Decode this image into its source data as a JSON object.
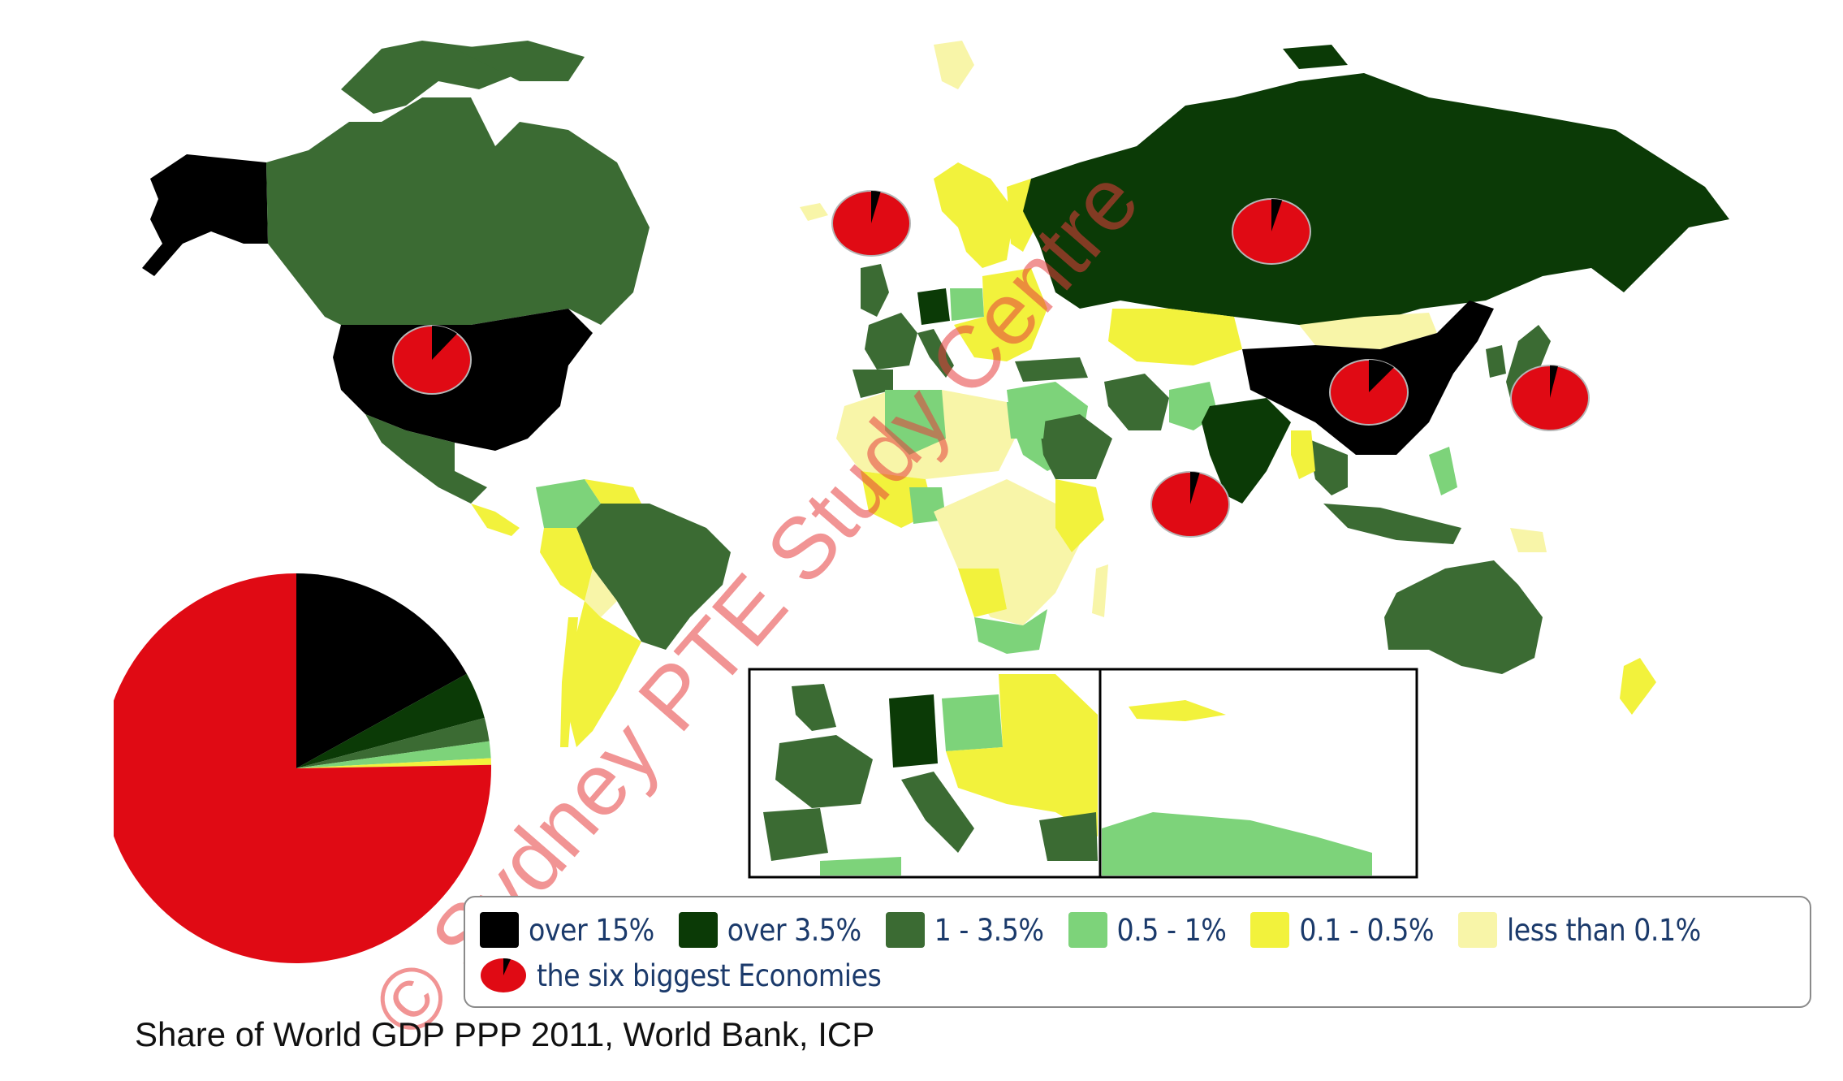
{
  "caption": "Share of World GDP PPP 2011, World Bank, ICP",
  "watermark": "© Sydney PTE Study Centre",
  "legend": {
    "items": [
      {
        "label": "over 15%",
        "color": "#000000"
      },
      {
        "label": "over 3.5%",
        "color": "#0b3a06"
      },
      {
        "label": "1 - 3.5%",
        "color": "#3b6b33"
      },
      {
        "label": "0.5 - 1%",
        "color": "#7dd37a"
      },
      {
        "label": "0.1 - 0.5%",
        "color": "#f2f23c"
      },
      {
        "label": "less than 0.1%",
        "color": "#f8f5a8"
      }
    ],
    "pie_label": "the six biggest Economies",
    "pie_color": "#e00a14",
    "pie_slice_color": "#000000"
  },
  "big_pie": {
    "colors": [
      "#e00a14",
      "#000000",
      "#0b3a06",
      "#3b6b33",
      "#7dd37a",
      "#f2f23c"
    ]
  },
  "map_colors": {
    "over15": "#000000",
    "over35": "#0b3a06",
    "mid": "#3b6b33",
    "light": "#7dd37a",
    "yellow": "#f2f23c",
    "pale": "#f8f5a8",
    "pie": "#e00a14"
  }
}
